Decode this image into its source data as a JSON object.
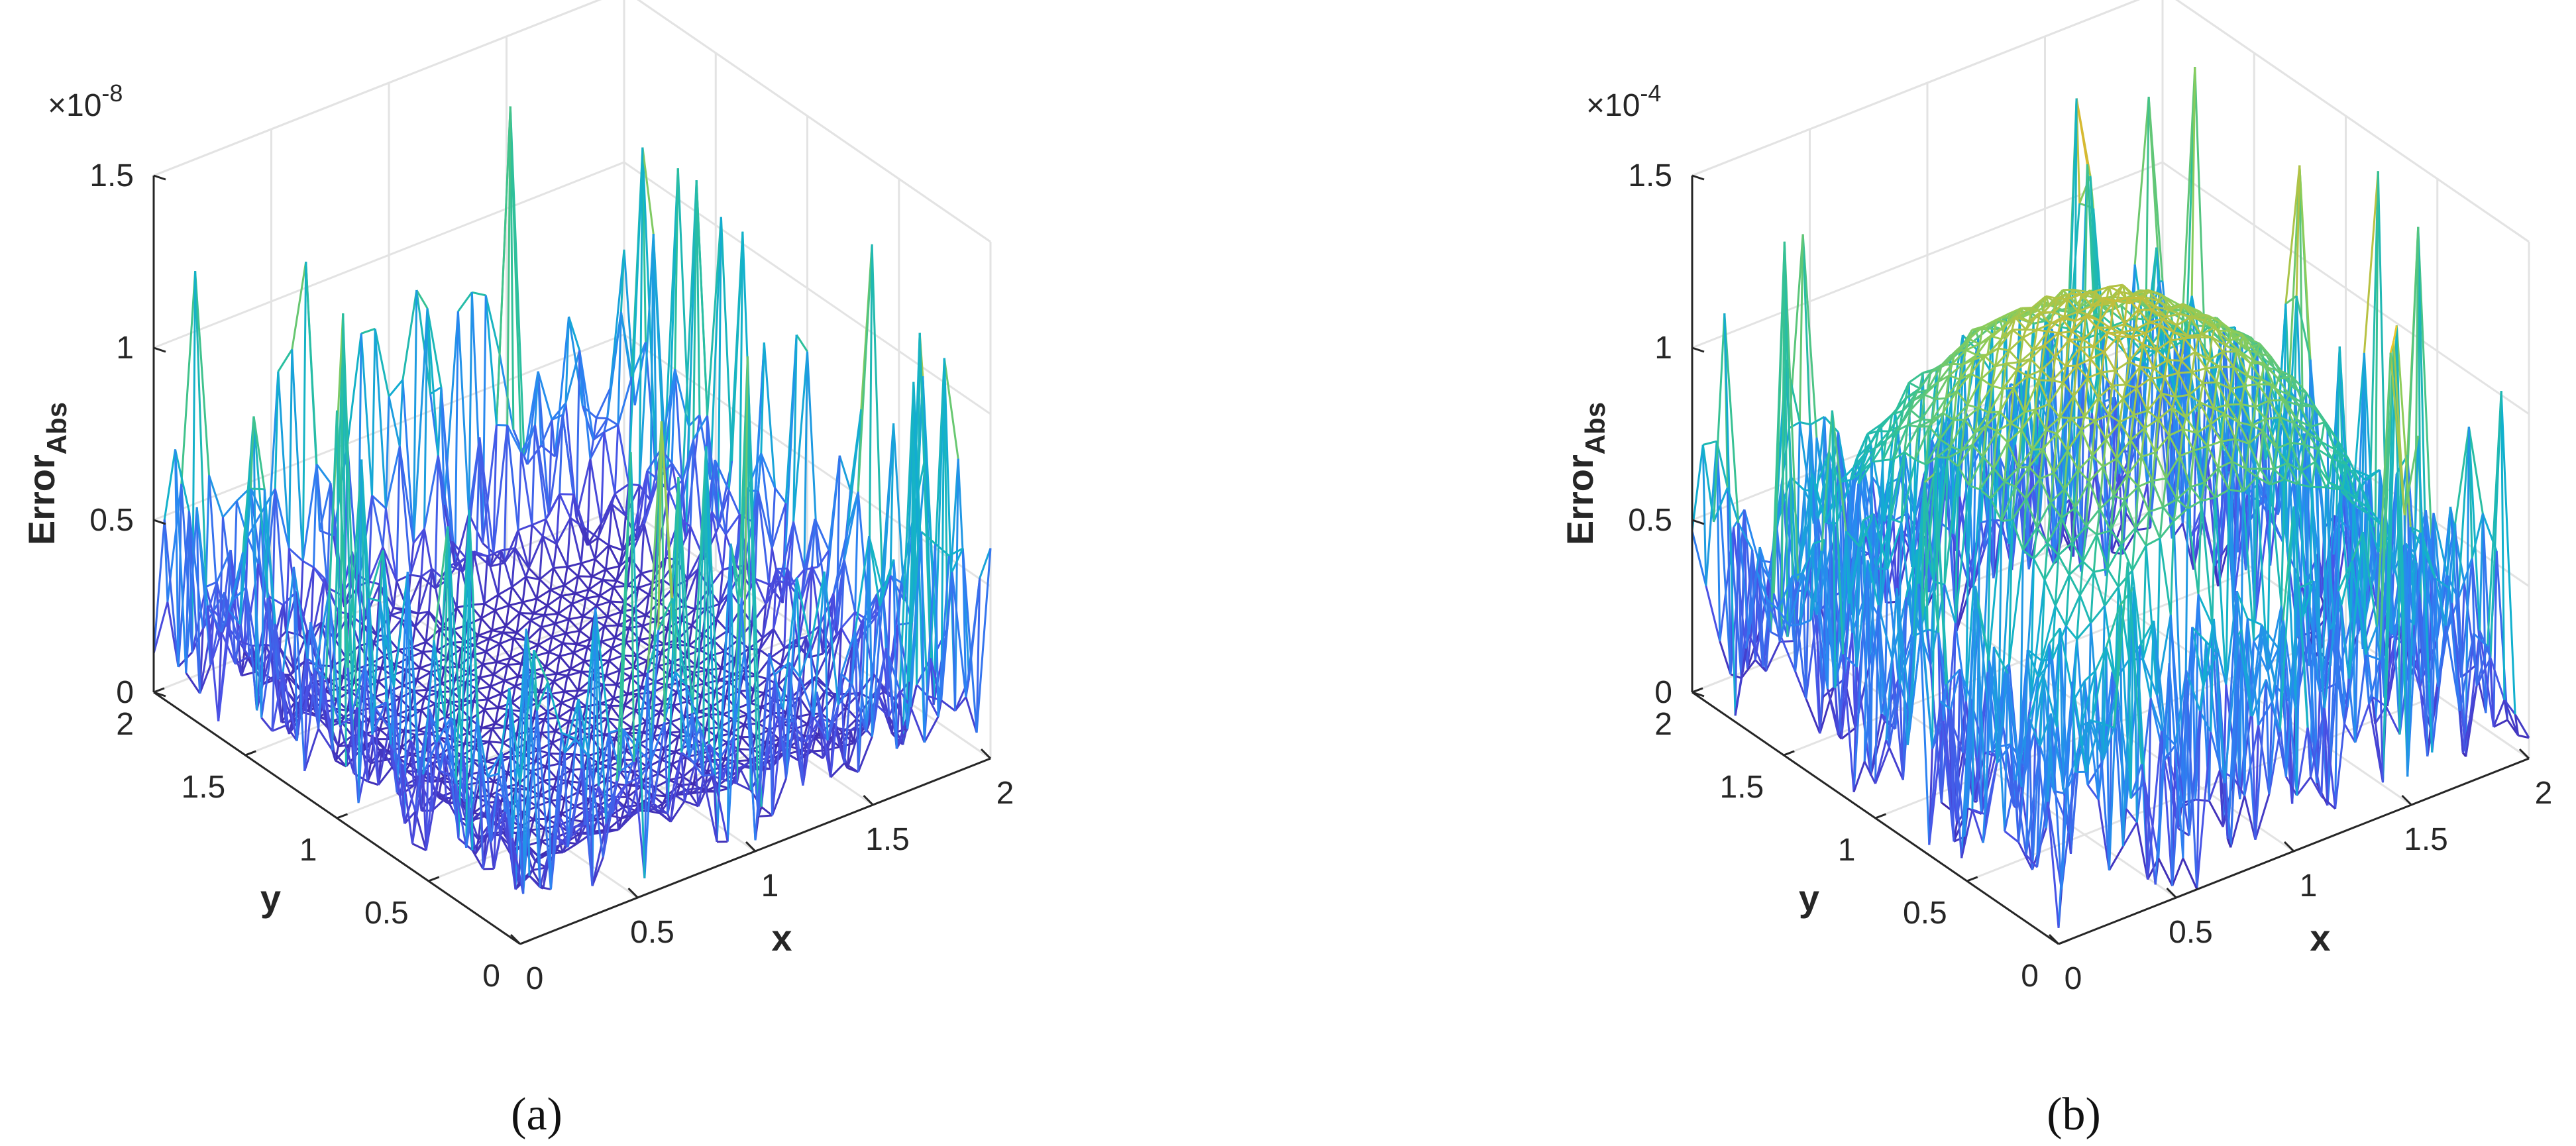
{
  "chart_data": [
    {
      "type": "surface",
      "panel_label": "(a)",
      "exponent_label": "×10",
      "exponent": "-8",
      "zlabel_main": "Error",
      "zlabel_sub": "Abs",
      "xlabel": "x",
      "ylabel": "y",
      "xlim": [
        0,
        2
      ],
      "ylim": [
        0,
        2
      ],
      "zlim": [
        0,
        1.5
      ],
      "xticks": [
        "0",
        "0.5",
        "1",
        "1.5",
        "2"
      ],
      "yticks": [
        "0",
        "0.5",
        "1",
        "1.5",
        "2"
      ],
      "zticks": [
        "0",
        "0.5",
        "1",
        "1.5"
      ],
      "grid": true,
      "colormap": [
        "#3e26a8",
        "#4a50e5",
        "#2a86f2",
        "#11b0ce",
        "#2dc09b",
        "#8ccc59",
        "#ddb82e",
        "#f8d825"
      ],
      "surface_shape": "flat near-zero interior with noisy spikes along the boundary",
      "interior_level": 0.05,
      "peak_value": 1.45,
      "seed": 11
    },
    {
      "type": "surface",
      "panel_label": "(b)",
      "exponent_label": "×10",
      "exponent": "-4",
      "zlabel_main": "Error",
      "zlabel_sub": "Abs",
      "xlabel": "x",
      "ylabel": "y",
      "xlim": [
        0,
        2
      ],
      "ylim": [
        0,
        2
      ],
      "zlim": [
        0,
        1.5
      ],
      "xticks": [
        "0",
        "0.5",
        "1",
        "1.5",
        "2"
      ],
      "yticks": [
        "0",
        "0.5",
        "1",
        "1.5",
        "2"
      ],
      "zticks": [
        "0",
        "0.5",
        "1",
        "1.5"
      ],
      "grid": true,
      "colormap": [
        "#3e26a8",
        "#4a50e5",
        "#2a86f2",
        "#11b0ce",
        "#2dc09b",
        "#8ccc59",
        "#ddb82e",
        "#f8d825"
      ],
      "surface_shape": "smooth dome peaking at the centre with noisy spikes along the boundary",
      "interior_level": 1.15,
      "peak_value": 1.45,
      "seed": 7
    }
  ]
}
